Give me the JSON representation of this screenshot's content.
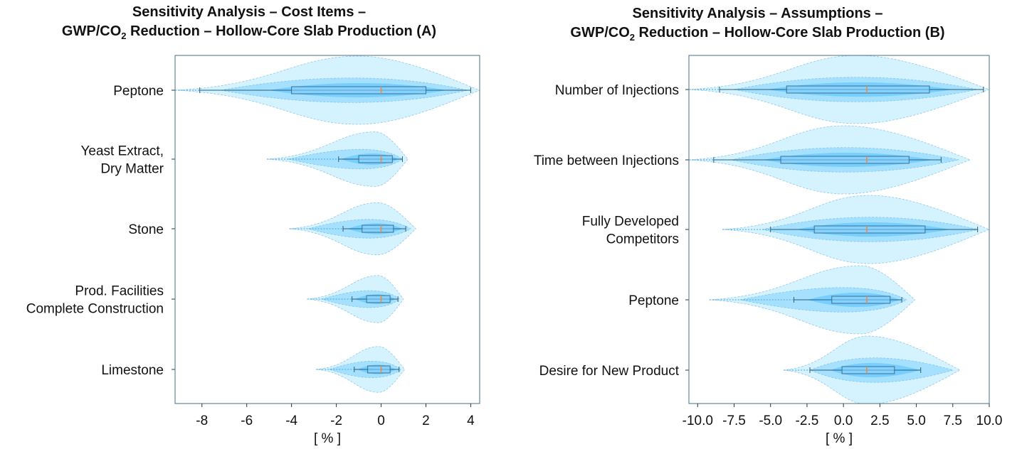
{
  "chart_data": [
    {
      "type": "box-violin",
      "title_line1": "Sensitivity Analysis – Cost Items –",
      "title_line2_pre": "GWP/CO",
      "title_line2_sub": "2",
      "title_line2_post": " Reduction – Hollow-Core Slab Production (A)",
      "xlabel": "[ % ]",
      "xlim": [
        -9.2,
        4.4
      ],
      "xticks": [
        -8,
        -6,
        -4,
        -2,
        0,
        2,
        4
      ],
      "xtick_labels": [
        "-8",
        "-6",
        "-4",
        "-2",
        "0",
        "2",
        "4"
      ],
      "series": [
        {
          "label": [
            "Peptone"
          ],
          "whisker_low": -8.1,
          "q1": -4.0,
          "median": 0.0,
          "q3": 2.0,
          "whisker_high": 4.0,
          "range_low": -9.2,
          "range_high": 4.4
        },
        {
          "label": [
            "Yeast Extract,",
            "Dry Matter"
          ],
          "whisker_low": -1.9,
          "q1": -1.0,
          "median": 0.0,
          "q3": 0.5,
          "whisker_high": 0.95,
          "range_low": -5.1,
          "range_high": 1.2
        },
        {
          "label": [
            "Stone"
          ],
          "whisker_low": -1.7,
          "q1": -0.85,
          "median": 0.0,
          "q3": 0.55,
          "whisker_high": 1.1,
          "range_low": -4.1,
          "range_high": 1.55
        },
        {
          "label": [
            "Prod. Facilities",
            "Complete Construction"
          ],
          "whisker_low": -1.3,
          "q1": -0.65,
          "median": 0.0,
          "q3": 0.4,
          "whisker_high": 0.75,
          "range_low": -3.3,
          "range_high": 1.0
        },
        {
          "label": [
            "Limestone"
          ],
          "whisker_low": -1.2,
          "q1": -0.6,
          "median": 0.0,
          "q3": 0.4,
          "whisker_high": 0.8,
          "range_low": -2.9,
          "range_high": 1.05
        }
      ]
    },
    {
      "type": "box-violin",
      "title_line1": "Sensitivity Analysis – Assumptions –",
      "title_line2_pre": "GWP/CO",
      "title_line2_sub": "2",
      "title_line2_post": " Reduction – Hollow-Core Slab Production (B)",
      "xlabel": "[ % ]",
      "xlim": [
        -10.6,
        10.0
      ],
      "xticks": [
        -10,
        -7.5,
        -5,
        -2.5,
        0,
        2.5,
        5,
        7.5,
        10
      ],
      "xtick_labels": [
        "-10.0",
        "-7.5",
        "-5.0",
        "-2.5",
        "0.0",
        "2.5",
        "5.0",
        "7.5",
        "10.0"
      ],
      "series": [
        {
          "label": [
            "Number of Injections"
          ],
          "whisker_low": -8.5,
          "q1": -3.9,
          "median": 1.6,
          "q3": 5.9,
          "whisker_high": 9.6,
          "range_low": -10.6,
          "range_high": 10.0
        },
        {
          "label": [
            "Time between Injections"
          ],
          "whisker_low": -8.9,
          "q1": -4.3,
          "median": 1.6,
          "q3": 4.5,
          "whisker_high": 6.7,
          "range_low": -10.6,
          "range_high": 8.7
        },
        {
          "label": [
            "Fully Developed",
            "Competitors"
          ],
          "whisker_low": -5.0,
          "q1": -2.0,
          "median": 1.6,
          "q3": 5.6,
          "whisker_high": 9.2,
          "range_low": -8.3,
          "range_high": 10.0
        },
        {
          "label": [
            "Peptone"
          ],
          "whisker_low": -3.4,
          "q1": -0.8,
          "median": 1.6,
          "q3": 3.2,
          "whisker_high": 4.0,
          "range_low": -9.2,
          "range_high": 4.9
        },
        {
          "label": [
            "Desire for New Product"
          ],
          "whisker_low": -2.3,
          "q1": -0.1,
          "median": 1.6,
          "q3": 3.5,
          "whisker_high": 5.3,
          "range_low": -4.1,
          "range_high": 8.0
        }
      ]
    }
  ]
}
